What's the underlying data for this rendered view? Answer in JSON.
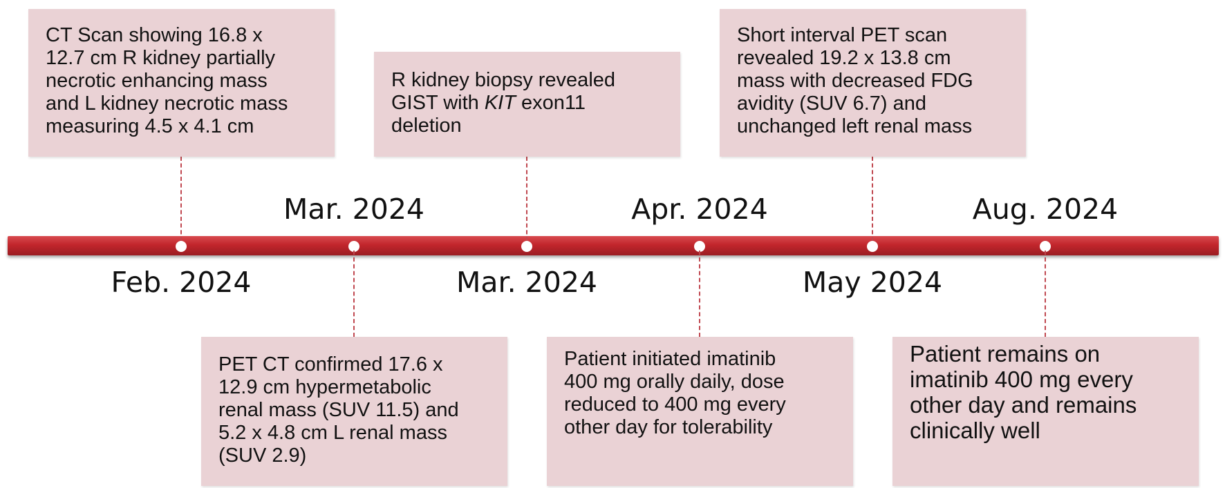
{
  "dates_above": [
    "Mar. 2024",
    "Apr. 2024",
    "Aug. 2024"
  ],
  "dates_below": [
    "Feb. 2024",
    "Mar. 2024",
    "May 2024"
  ],
  "events": [
    {
      "lines": [
        "CT Scan showing 16.8 x",
        "12.7 cm R kidney partially",
        "necrotic enhancing mass",
        "and L kidney necrotic mass",
        "measuring 4.5 x 4.1 cm"
      ]
    },
    {
      "lines": [
        "PET CT confirmed 17.6 x",
        "12.9 cm hypermetabolic",
        "renal mass (SUV 11.5) and",
        "5.2 x 4.8 cm L renal mass",
        "(SUV 2.9)"
      ]
    },
    {
      "line1": "R kidney biopsy revealed",
      "line2_pre": "GIST with ",
      "line2_italic": "KIT",
      "line2_post": " exon11",
      "line3": "deletion"
    },
    {
      "lines": [
        "Patient initiated imatinib",
        "400 mg orally daily, dose",
        "reduced to 400 mg every",
        "other day for tolerability"
      ]
    },
    {
      "lines": [
        "Short interval PET scan",
        "revealed 19.2 x 13.8 cm",
        "mass with decreased FDG",
        "avidity (SUV 6.7) and",
        "unchanged left renal mass"
      ]
    },
    {
      "lines": [
        "Patient remains on",
        "imatinib 400 mg every",
        "other day and remains",
        "clinically well"
      ]
    }
  ],
  "colors": {
    "box_fill": "#ead2d5",
    "timeline": "#c2262c",
    "connector": "#c0474f"
  }
}
